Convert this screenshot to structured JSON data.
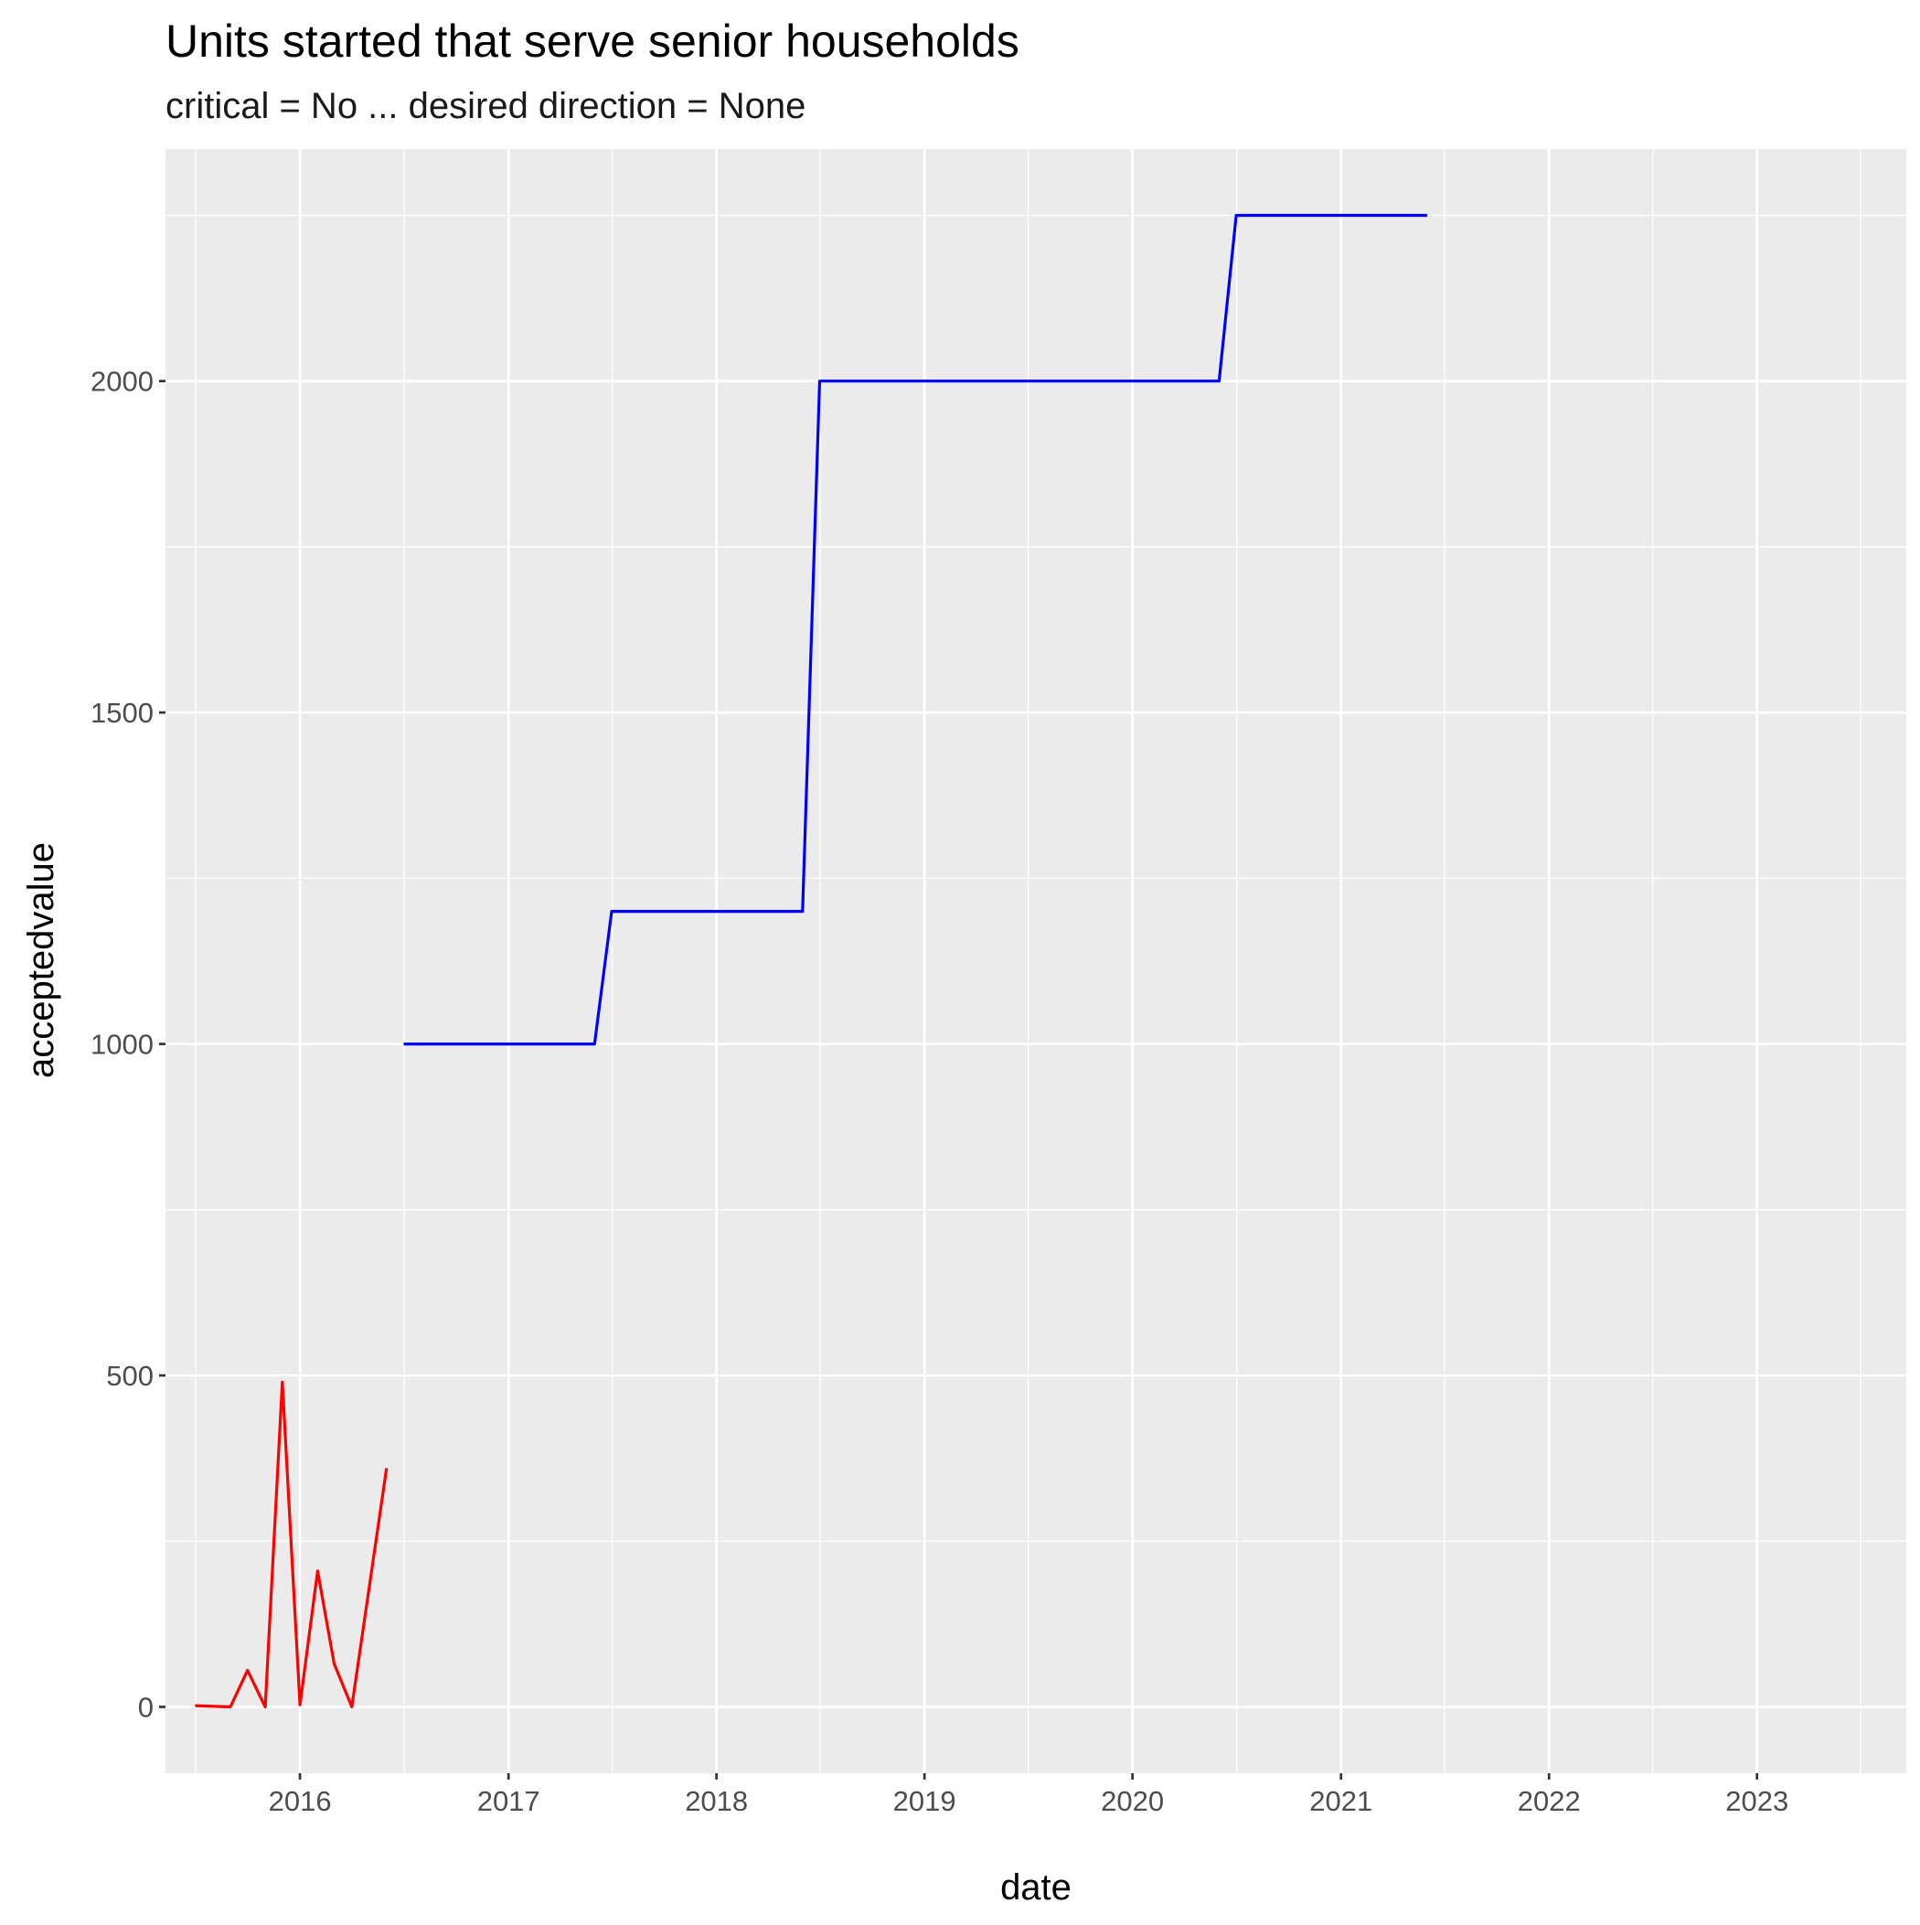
{
  "chart_data": {
    "type": "line",
    "title": "Units started that serve senior households",
    "subtitle": "critical = No ... desired direction = None",
    "xlabel": "date",
    "ylabel": "acceptedvalue",
    "x_scale": "date",
    "xlim": [
      "2015-05-10",
      "2023-09-20"
    ],
    "ylim": [
      -100,
      2350
    ],
    "x_ticks": [
      {
        "value": "2016-01-01",
        "label": "2016"
      },
      {
        "value": "2017-01-01",
        "label": "2017"
      },
      {
        "value": "2018-01-01",
        "label": "2018"
      },
      {
        "value": "2019-01-01",
        "label": "2019"
      },
      {
        "value": "2020-01-01",
        "label": "2020"
      },
      {
        "value": "2021-01-01",
        "label": "2021"
      },
      {
        "value": "2022-01-01",
        "label": "2022"
      },
      {
        "value": "2023-01-01",
        "label": "2023"
      }
    ],
    "x_minor_ticks": [
      "2015-07-02",
      "2016-07-02",
      "2017-07-02",
      "2018-07-02",
      "2019-07-02",
      "2020-07-02",
      "2021-07-02",
      "2022-07-02",
      "2023-07-02"
    ],
    "y_ticks": [
      {
        "value": 0,
        "label": "0"
      },
      {
        "value": 500,
        "label": "500"
      },
      {
        "value": 1000,
        "label": "1000"
      },
      {
        "value": 1500,
        "label": "1500"
      },
      {
        "value": 2000,
        "label": "2000"
      }
    ],
    "y_minor_ticks": [
      250,
      750,
      1250,
      1750,
      2250
    ],
    "grid": true,
    "legend": "none",
    "background": "#ebebeb",
    "series": [
      {
        "color": "#ff0000",
        "points": [
          {
            "x": "2015-07-01",
            "y": 2
          },
          {
            "x": "2015-09-01",
            "y": 0
          },
          {
            "x": "2015-10-01",
            "y": 55
          },
          {
            "x": "2015-11-01",
            "y": 0
          },
          {
            "x": "2015-12-01",
            "y": 490
          },
          {
            "x": "2016-01-01",
            "y": 3
          },
          {
            "x": "2016-02-01",
            "y": 205
          },
          {
            "x": "2016-03-01",
            "y": 65
          },
          {
            "x": "2016-04-01",
            "y": 0
          },
          {
            "x": "2016-06-01",
            "y": 360
          }
        ]
      },
      {
        "color": "#0000ff",
        "points": [
          {
            "x": "2016-07-01",
            "y": 1000
          },
          {
            "x": "2017-06-01",
            "y": 1000
          },
          {
            "x": "2017-07-01",
            "y": 1200
          },
          {
            "x": "2018-06-01",
            "y": 1200
          },
          {
            "x": "2018-07-01",
            "y": 2000
          },
          {
            "x": "2020-06-01",
            "y": 2000
          },
          {
            "x": "2020-07-01",
            "y": 2250
          },
          {
            "x": "2021-06-01",
            "y": 2250
          }
        ]
      }
    ]
  }
}
